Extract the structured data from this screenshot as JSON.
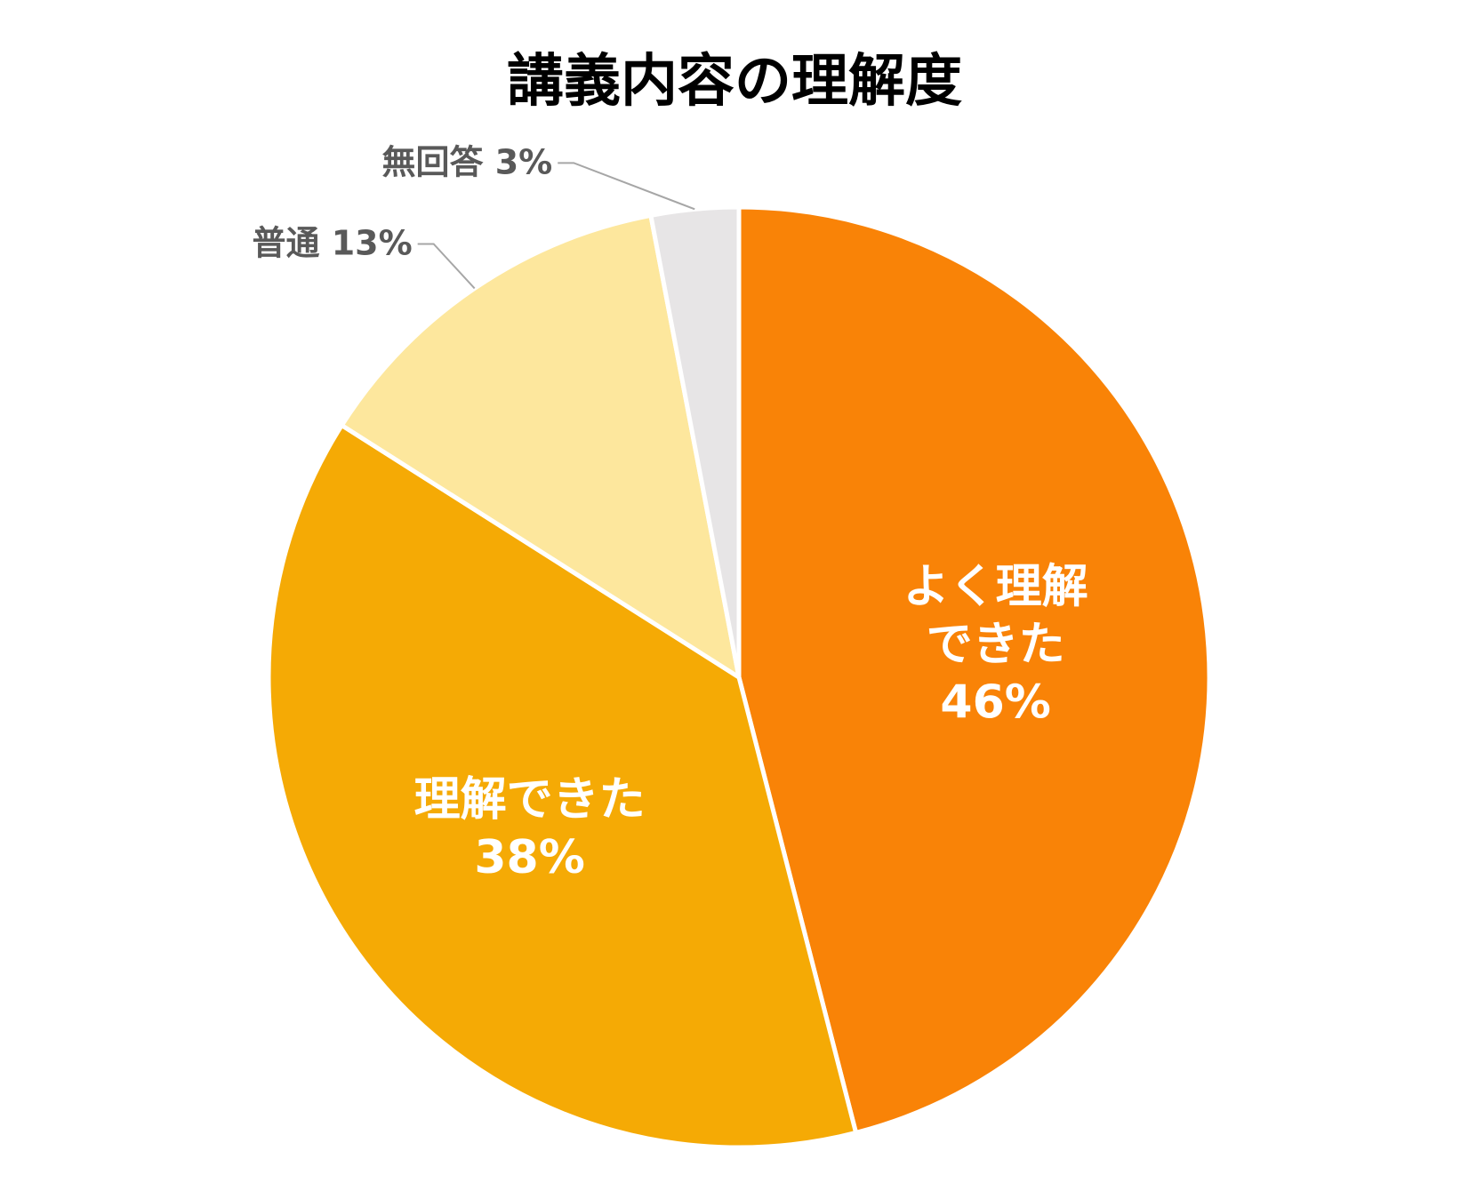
{
  "chart_data": {
    "type": "pie",
    "title": "講義内容の理解度",
    "categories": [
      "よく理解できた",
      "理解できた",
      "普通",
      "無回答"
    ],
    "values": [
      46,
      38,
      13,
      3
    ],
    "value_labels": [
      "46%",
      "38%",
      "13%",
      "3%"
    ],
    "colors": [
      "#f98307",
      "#f5aa05",
      "#fde79d",
      "#e7e5e6"
    ]
  }
}
